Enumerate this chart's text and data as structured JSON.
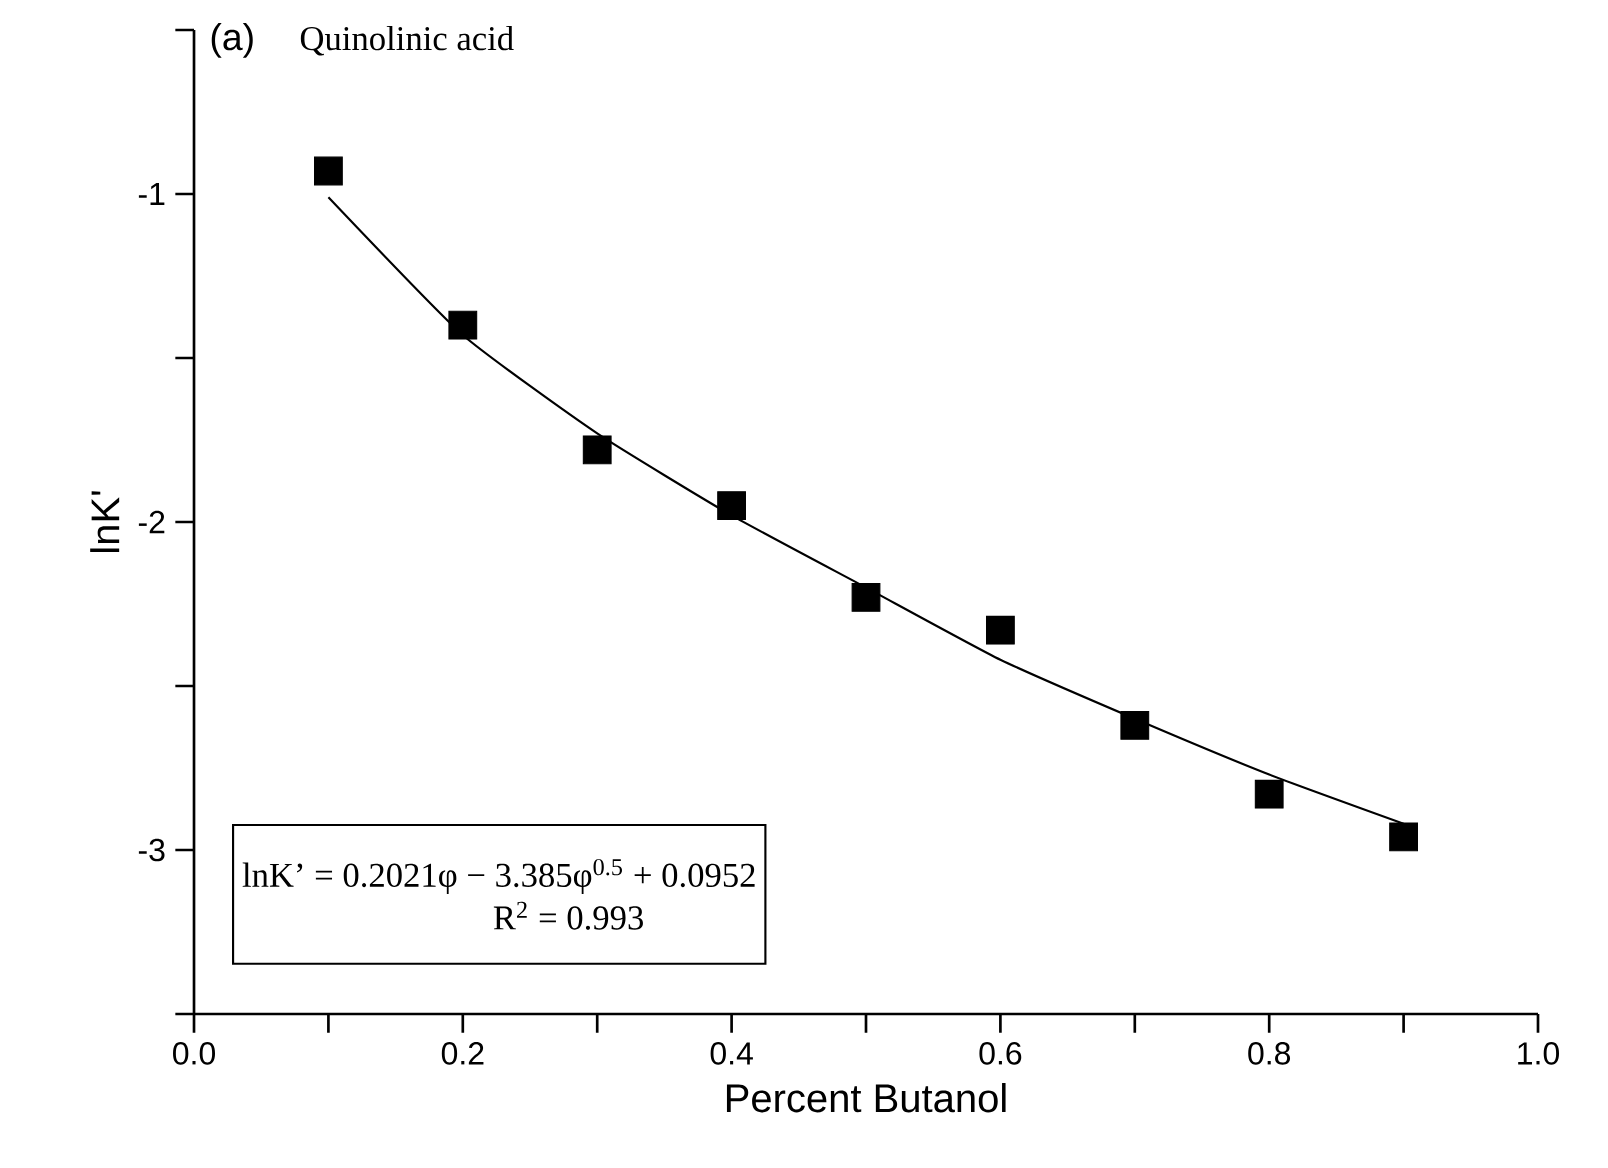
{
  "chart_data": {
    "type": "scatter",
    "title": "(a)",
    "subtitle": "Quinolinic acid",
    "xlabel": "Percent Butanol",
    "ylabel": "lnK'",
    "x": [
      0.1,
      0.2,
      0.3,
      0.4,
      0.5,
      0.6,
      0.7,
      0.8,
      0.9
    ],
    "series": [
      {
        "color": "#000000",
        "marker": "square",
        "values": [
          -0.93,
          -1.4,
          -1.78,
          -1.95,
          -2.23,
          -2.33,
          -2.62,
          -2.83,
          -2.96
        ]
      },
      {
        "type": "line",
        "color": "#000000",
        "marker": "none",
        "line_style": "solid",
        "values": [
          -1.01,
          -1.43,
          -1.73,
          -1.98,
          -2.2,
          -2.42,
          -2.6,
          -2.77,
          -2.92
        ]
      }
    ],
    "xlim": [
      0,
      1
    ],
    "ylim": [
      -3.5,
      -0.5
    ],
    "xticks": [
      {
        "value": 0,
        "label": "0.0"
      },
      {
        "value": 0.1,
        "label": null
      },
      0.2,
      {
        "value": 0.3,
        "label": null
      },
      0.4,
      {
        "value": 0.5,
        "label": null
      },
      0.6,
      {
        "value": 0.7,
        "label": null
      },
      0.8,
      {
        "value": 0.9,
        "label": null
      },
      {
        "value": 1,
        "label": "1.0"
      }
    ],
    "yticks": [
      {
        "value": -3.5,
        "label": null
      },
      -3,
      {
        "value": -2.5,
        "label": null
      },
      -2,
      {
        "value": -1.5,
        "label": null
      },
      -1,
      {
        "value": -0.5,
        "label": null
      }
    ],
    "annotations": [
      "lnK’ = 0.2021φ − 3.385φ$^{0.5}$ + 0.0952",
      "R$^{2}$ =  0.993"
    ],
    "grid": false
  }
}
